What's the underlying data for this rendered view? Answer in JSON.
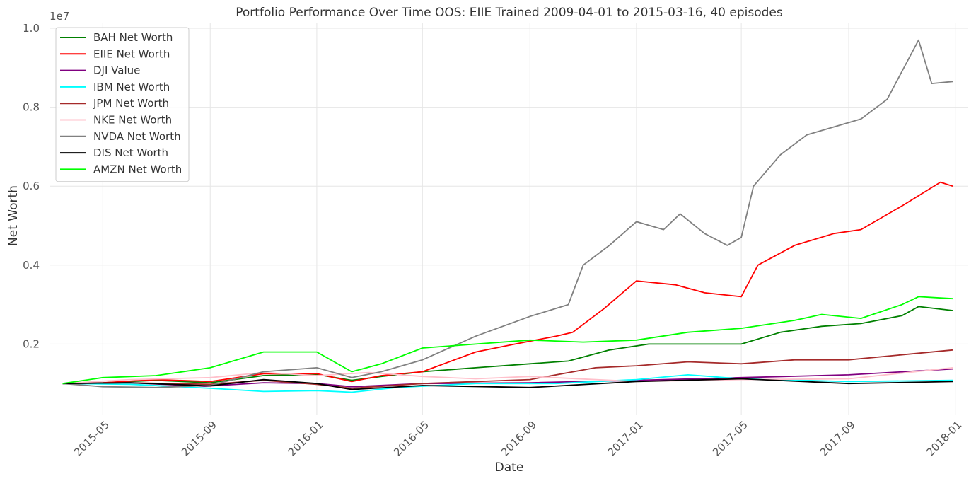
{
  "chart_data": {
    "type": "line",
    "title": "Portfolio Performance Over Time OOS: EIIE Trained 2009-04-01 to 2015-03-16, 40 episodes",
    "xlabel": "Date",
    "ylabel": "Net Worth",
    "y_offset_text": "1e7",
    "y_scale": 10000000,
    "xlim": [
      "2015-03-01",
      "2018-01-15"
    ],
    "ylim": [
      0.0,
      1.0
    ],
    "xticks": [
      "2015-05",
      "2015-09",
      "2016-01",
      "2016-05",
      "2016-09",
      "2017-01",
      "2017-05",
      "2017-09",
      "2018-01"
    ],
    "yticks": [
      "0.2",
      "0.4",
      "0.6",
      "0.8",
      "1.0"
    ],
    "grid": true,
    "legend_position": "top-left",
    "series": [
      {
        "name": "BAH Net Worth",
        "color": "#008000",
        "x": [
          "2015-03-16",
          "2015-05-01",
          "2015-07-01",
          "2015-09-01",
          "2015-11-01",
          "2016-01-01",
          "2016-02-10",
          "2016-03-15",
          "2016-05-01",
          "2016-07-01",
          "2016-09-01",
          "2016-10-15",
          "2016-12-01",
          "2017-01-15",
          "2017-03-01",
          "2017-05-01",
          "2017-06-15",
          "2017-08-01",
          "2017-09-15",
          "2017-11-01",
          "2017-11-20",
          "2017-12-29"
        ],
        "values": [
          0.1,
          0.102,
          0.108,
          0.102,
          0.12,
          0.123,
          0.108,
          0.118,
          0.13,
          0.14,
          0.15,
          0.157,
          0.185,
          0.2,
          0.2,
          0.2,
          0.23,
          0.245,
          0.252,
          0.272,
          0.295,
          0.285
        ]
      },
      {
        "name": "EIIE Net Worth",
        "color": "#ff0000",
        "x": [
          "2015-03-16",
          "2015-05-01",
          "2015-07-01",
          "2015-09-01",
          "2015-11-01",
          "2016-01-01",
          "2016-02-10",
          "2016-03-15",
          "2016-05-01",
          "2016-07-01",
          "2016-08-15",
          "2016-10-01",
          "2016-10-20",
          "2016-11-25",
          "2017-01-01",
          "2017-02-15",
          "2017-03-20",
          "2017-05-01",
          "2017-05-20",
          "2017-07-01",
          "2017-08-15",
          "2017-09-15",
          "2017-11-01",
          "2017-12-15",
          "2017-12-29"
        ],
        "values": [
          0.1,
          0.102,
          0.11,
          0.105,
          0.125,
          0.125,
          0.105,
          0.12,
          0.13,
          0.18,
          0.2,
          0.22,
          0.23,
          0.29,
          0.36,
          0.35,
          0.33,
          0.32,
          0.4,
          0.45,
          0.48,
          0.49,
          0.55,
          0.61,
          0.6
        ]
      },
      {
        "name": "DJI Value",
        "color": "#800080",
        "x": [
          "2015-03-16",
          "2015-06-01",
          "2015-08-25",
          "2015-11-01",
          "2016-01-01",
          "2016-02-10",
          "2016-05-01",
          "2016-09-01",
          "2017-01-01",
          "2017-05-01",
          "2017-09-01",
          "2017-12-29"
        ],
        "values": [
          0.1,
          0.102,
          0.093,
          0.102,
          0.1,
          0.092,
          0.1,
          0.102,
          0.108,
          0.115,
          0.122,
          0.137
        ]
      },
      {
        "name": "IBM Net Worth",
        "color": "#00ffff",
        "x": [
          "2015-03-16",
          "2015-06-01",
          "2015-09-01",
          "2015-11-01",
          "2016-01-01",
          "2016-02-10",
          "2016-04-01",
          "2016-07-01",
          "2016-10-01",
          "2017-01-01",
          "2017-03-01",
          "2017-05-01",
          "2017-09-01",
          "2017-12-29"
        ],
        "values": [
          0.1,
          0.098,
          0.088,
          0.08,
          0.082,
          0.078,
          0.09,
          0.1,
          0.1,
          0.11,
          0.122,
          0.112,
          0.105,
          0.108
        ]
      },
      {
        "name": "JPM Net Worth",
        "color": "#a52a2a",
        "x": [
          "2015-03-16",
          "2015-06-01",
          "2015-09-01",
          "2015-11-01",
          "2016-01-01",
          "2016-02-10",
          "2016-05-01",
          "2016-09-01",
          "2016-11-15",
          "2017-01-01",
          "2017-03-01",
          "2017-05-01",
          "2017-07-01",
          "2017-09-01",
          "2017-12-29"
        ],
        "values": [
          0.1,
          0.102,
          0.098,
          0.108,
          0.098,
          0.088,
          0.1,
          0.11,
          0.14,
          0.145,
          0.155,
          0.15,
          0.16,
          0.16,
          0.185
        ]
      },
      {
        "name": "NKE Net Worth",
        "color": "#ffc0cb",
        "x": [
          "2015-03-16",
          "2015-06-01",
          "2015-09-01",
          "2015-11-01",
          "2016-01-01",
          "2016-03-01",
          "2016-05-01",
          "2016-07-01",
          "2016-09-01",
          "2017-01-01",
          "2017-05-01",
          "2017-09-01",
          "2017-12-29"
        ],
        "values": [
          0.1,
          0.11,
          0.115,
          0.128,
          0.12,
          0.128,
          0.118,
          0.112,
          0.118,
          0.105,
          0.11,
          0.112,
          0.14
        ]
      },
      {
        "name": "NVDA Net Worth",
        "color": "#808080",
        "x": [
          "2015-03-16",
          "2015-05-01",
          "2015-07-01",
          "2015-09-01",
          "2015-11-01",
          "2016-01-01",
          "2016-02-10",
          "2016-03-15",
          "2016-05-01",
          "2016-07-01",
          "2016-09-01",
          "2016-10-15",
          "2016-11-01",
          "2016-12-01",
          "2017-01-01",
          "2017-02-01",
          "2017-02-20",
          "2017-03-20",
          "2017-04-15",
          "2017-05-01",
          "2017-05-15",
          "2017-06-15",
          "2017-07-15",
          "2017-08-15",
          "2017-09-15",
          "2017-10-15",
          "2017-11-20",
          "2017-12-05",
          "2017-12-29"
        ],
        "values": [
          0.1,
          0.092,
          0.09,
          0.095,
          0.13,
          0.14,
          0.115,
          0.13,
          0.16,
          0.22,
          0.27,
          0.3,
          0.4,
          0.45,
          0.51,
          0.49,
          0.53,
          0.48,
          0.45,
          0.47,
          0.6,
          0.68,
          0.73,
          0.75,
          0.77,
          0.82,
          0.97,
          0.86,
          0.865
        ]
      },
      {
        "name": "DIS Net Worth",
        "color": "#000000",
        "x": [
          "2015-03-16",
          "2015-06-01",
          "2015-09-01",
          "2015-11-01",
          "2016-01-01",
          "2016-02-10",
          "2016-05-01",
          "2016-09-01",
          "2017-01-01",
          "2017-05-01",
          "2017-09-01",
          "2017-12-29"
        ],
        "values": [
          0.1,
          0.102,
          0.094,
          0.11,
          0.1,
          0.085,
          0.095,
          0.09,
          0.105,
          0.112,
          0.1,
          0.105
        ]
      },
      {
        "name": "AMZN Net Worth",
        "color": "#00ff00",
        "x": [
          "2015-03-16",
          "2015-05-01",
          "2015-07-01",
          "2015-09-01",
          "2015-11-01",
          "2016-01-01",
          "2016-02-10",
          "2016-03-15",
          "2016-05-01",
          "2016-07-01",
          "2016-09-01",
          "2016-11-01",
          "2017-01-01",
          "2017-03-01",
          "2017-05-01",
          "2017-07-01",
          "2017-08-01",
          "2017-09-15",
          "2017-11-01",
          "2017-11-20",
          "2017-12-29"
        ],
        "values": [
          0.1,
          0.115,
          0.12,
          0.14,
          0.18,
          0.18,
          0.13,
          0.15,
          0.19,
          0.2,
          0.21,
          0.205,
          0.21,
          0.23,
          0.24,
          0.26,
          0.275,
          0.265,
          0.3,
          0.32,
          0.315
        ]
      }
    ]
  }
}
